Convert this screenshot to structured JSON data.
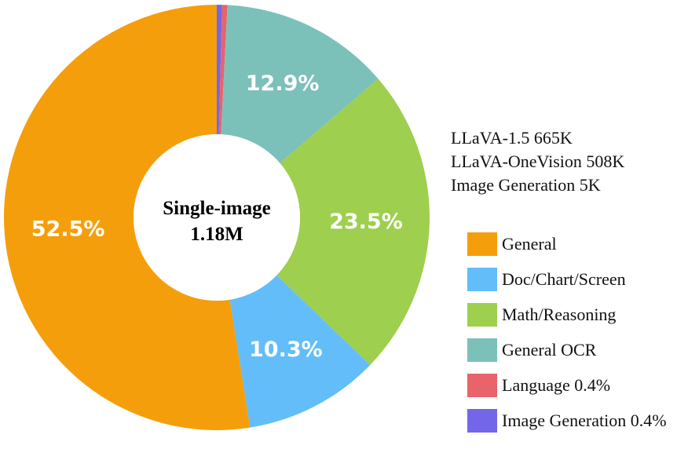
{
  "chart_data": {
    "type": "pie",
    "center_label": {
      "line1": "Single-image",
      "line2": "1.18M"
    },
    "slices": [
      {
        "name": "Image Generation",
        "value": 0.4,
        "label": "",
        "color": "#7466E8"
      },
      {
        "name": "Language",
        "value": 0.4,
        "label": "",
        "color": "#E8636A"
      },
      {
        "name": "General OCR",
        "value": 12.9,
        "label": "12.9%",
        "color": "#7CC0BA"
      },
      {
        "name": "Math/Reasoning",
        "value": 23.5,
        "label": "23.5%",
        "color": "#9ECF4E"
      },
      {
        "name": "Doc/Chart/Screen",
        "value": 10.3,
        "label": "10.3%",
        "color": "#63BDF8"
      },
      {
        "name": "General",
        "value": 52.5,
        "label": "52.5%",
        "color": "#F59E0B"
      }
    ],
    "sources": [
      "LLaVA-1.5 665K",
      "LLaVA-OneVision 508K",
      "Image Generation 5K"
    ],
    "legend": [
      {
        "label": "General",
        "color": "#F59E0B"
      },
      {
        "label": "Doc/Chart/Screen",
        "color": "#63BDF8"
      },
      {
        "label": "Math/Reasoning",
        "color": "#9ECF4E"
      },
      {
        "label": "General OCR",
        "color": "#7CC0BA"
      },
      {
        "label": "Language 0.4%",
        "color": "#E8636A"
      },
      {
        "label": "Image Generation 0.4%",
        "color": "#7466E8"
      }
    ]
  }
}
